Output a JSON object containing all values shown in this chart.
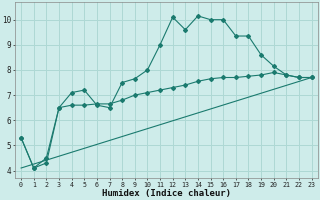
{
  "xlabel": "Humidex (Indice chaleur)",
  "bg_color": "#ceecea",
  "grid_color": "#aed8d4",
  "line_color": "#1a7a6e",
  "xlim": [
    -0.5,
    23.5
  ],
  "ylim": [
    3.7,
    10.7
  ],
  "yticks": [
    4,
    5,
    6,
    7,
    8,
    9,
    10
  ],
  "xticks": [
    0,
    1,
    2,
    3,
    4,
    5,
    6,
    7,
    8,
    9,
    10,
    11,
    12,
    13,
    14,
    15,
    16,
    17,
    18,
    19,
    20,
    21,
    22,
    23
  ],
  "line1_x": [
    0,
    1,
    2,
    3,
    4,
    5,
    6,
    7,
    8,
    9,
    10,
    11,
    12,
    13,
    14,
    15,
    16,
    17,
    18,
    19,
    20,
    21,
    22,
    23
  ],
  "line1_y": [
    5.3,
    4.1,
    4.3,
    6.5,
    7.1,
    7.2,
    6.6,
    6.5,
    7.5,
    7.65,
    8.0,
    9.0,
    10.1,
    9.6,
    10.15,
    10.0,
    10.0,
    9.35,
    9.35,
    8.6,
    8.15,
    7.8,
    7.7,
    7.7
  ],
  "line2_x": [
    0,
    1,
    2,
    3,
    4,
    5,
    6,
    7,
    8,
    9,
    10,
    11,
    12,
    13,
    14,
    15,
    16,
    17,
    18,
    19,
    20,
    21,
    22,
    23
  ],
  "line2_y": [
    5.3,
    4.1,
    4.5,
    6.5,
    6.6,
    6.6,
    6.65,
    6.65,
    6.8,
    7.0,
    7.1,
    7.2,
    7.3,
    7.4,
    7.55,
    7.65,
    7.7,
    7.7,
    7.75,
    7.8,
    7.9,
    7.8,
    7.7,
    7.7
  ],
  "line3_x": [
    0,
    23
  ],
  "line3_y": [
    4.1,
    7.7
  ]
}
